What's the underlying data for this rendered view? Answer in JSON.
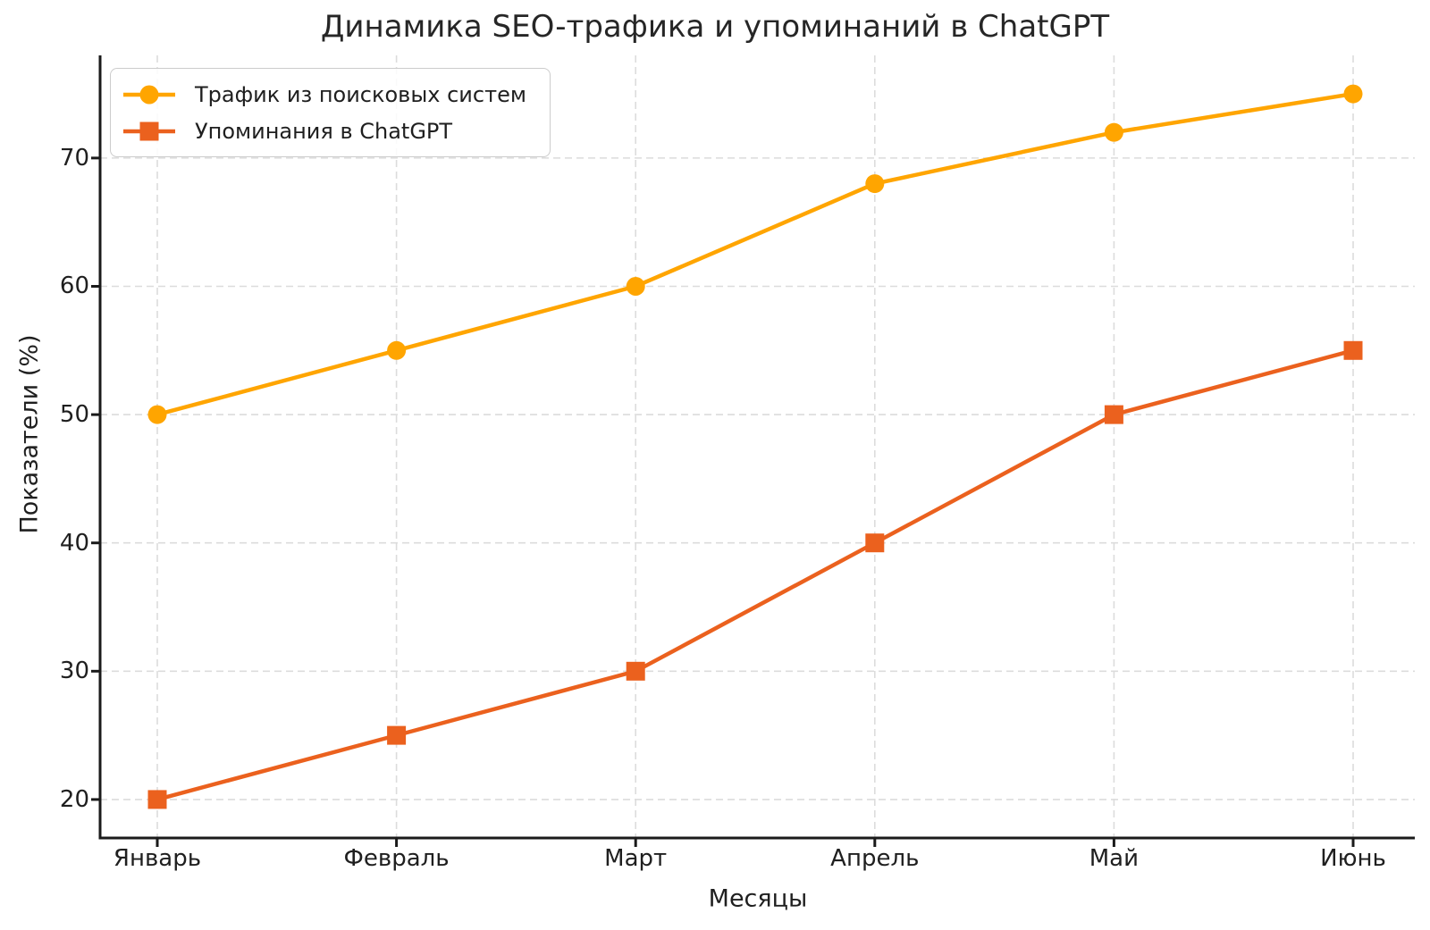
{
  "chart_data": {
    "type": "line",
    "title": "Динамика SEO-трафика и упоминаний в ChatGPT",
    "xlabel": "Месяцы",
    "ylabel": "Показатели (%)",
    "categories": [
      "Январь",
      "Февраль",
      "Март",
      "Апрель",
      "Май",
      "Июнь"
    ],
    "series": [
      {
        "id": "search-traffic",
        "name": "Трафик из поисковых систем",
        "values": [
          50,
          55,
          60,
          68,
          72,
          75
        ],
        "color": "#FFA500",
        "marker": "circle"
      },
      {
        "id": "chatgpt-mentions",
        "name": "Упоминания в ChatGPT",
        "values": [
          20,
          25,
          30,
          40,
          50,
          55
        ],
        "color": "#EB611E",
        "marker": "square"
      }
    ],
    "yticks": [
      20,
      30,
      40,
      50,
      60,
      70
    ],
    "ylim": [
      17,
      78
    ],
    "grid": true,
    "grid_style": "dashed",
    "grid_color": "#dcdcdc",
    "axis_color": "#1a1a1a",
    "legend_position": "upper-left"
  }
}
